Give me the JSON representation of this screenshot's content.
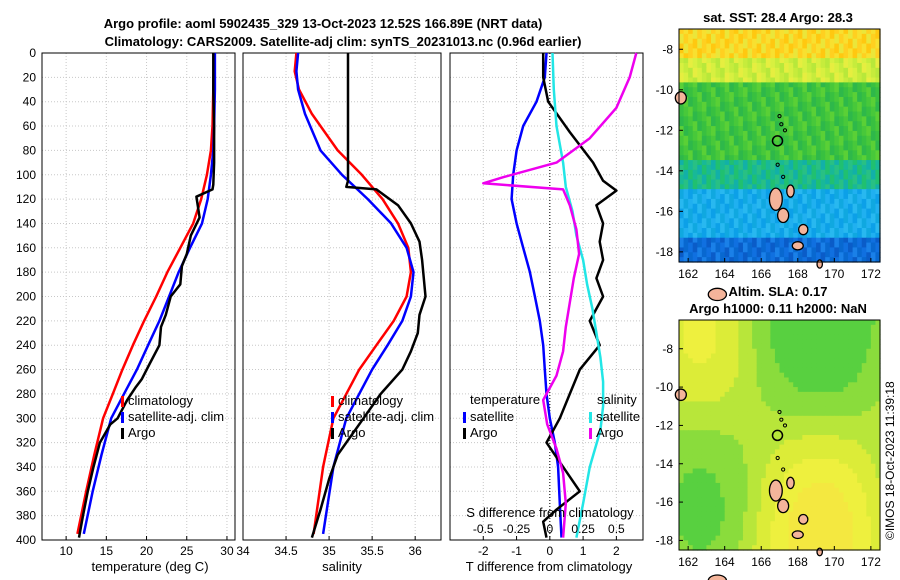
{
  "header": {
    "title_line1": "Argo profile: aoml 5902435_329 13-Oct-2023 12.52S 166.89E (NRT data)",
    "title_line2": "Climatology: CARS2009. Satellite-adj clim: synTS_20231013.nc (0.96d earlier)"
  },
  "colors": {
    "climatology": "#ff0000",
    "satellite": "#0000ff",
    "argo": "#000000",
    "sat_temp_diff": "#22e6e6",
    "salinity_diff": "#ee00ee"
  },
  "chart_data": [
    {
      "type": "line",
      "title": "",
      "xlabel": "temperature (deg C)",
      "ylabel": "",
      "xlim": [
        7,
        31
      ],
      "ylim": [
        400,
        0
      ],
      "xticks": [
        10,
        15,
        20,
        25,
        30
      ],
      "yticks": [
        0,
        20,
        40,
        60,
        80,
        100,
        120,
        140,
        160,
        180,
        200,
        220,
        240,
        260,
        280,
        300,
        320,
        340,
        360,
        380,
        400
      ],
      "legend": [
        "climatology",
        "satellite-adj. clim",
        "Argo"
      ],
      "series": [
        {
          "name": "climatology",
          "x": [
            28.4,
            28.3,
            28.2,
            28.0,
            27.5,
            26.8,
            25.8,
            24.2,
            22.6,
            21.2,
            19.7,
            18.3,
            17.0,
            15.8,
            14.6,
            13.5,
            12.5,
            11.4
          ],
          "y": [
            0,
            30,
            60,
            80,
            100,
            120,
            140,
            160,
            180,
            200,
            220,
            240,
            260,
            280,
            300,
            330,
            360,
            395
          ]
        },
        {
          "name": "satellite-adj. clim",
          "x": [
            28.5,
            28.5,
            28.4,
            28.3,
            28.0,
            27.6,
            26.9,
            25.4,
            24.0,
            22.8,
            21.6,
            20.2,
            18.8,
            17.2,
            15.6,
            14.4,
            13.3,
            12.2
          ],
          "y": [
            0,
            30,
            60,
            80,
            100,
            120,
            140,
            160,
            180,
            200,
            220,
            240,
            260,
            280,
            300,
            330,
            360,
            395
          ]
        },
        {
          "name": "Argo",
          "x": [
            28.3,
            28.3,
            28.4,
            28.4,
            28.3,
            28.2,
            26.2,
            26.6,
            25.5,
            25.0,
            24.4,
            24.2,
            23.0,
            22.4,
            21.8,
            21.6,
            20.4,
            19.4,
            18.6,
            17.6,
            16.4,
            15.5,
            14.2,
            13.4,
            12.7,
            12.1,
            11.6
          ],
          "y": [
            0,
            30,
            60,
            90,
            108,
            112,
            118,
            135,
            150,
            165,
            175,
            190,
            200,
            215,
            225,
            240,
            255,
            268,
            275,
            285,
            300,
            305,
            320,
            340,
            360,
            380,
            398
          ]
        }
      ]
    },
    {
      "type": "line",
      "title": "",
      "xlabel": "salinity",
      "ylabel": "",
      "xlim": [
        34,
        36.3
      ],
      "ylim": [
        400,
        0
      ],
      "xticks": [
        34,
        34.5,
        35,
        35.5,
        36
      ],
      "xtick_labels": [
        "34",
        "34.5",
        "35",
        "35.5",
        "36"
      ],
      "legend": [
        "climatology",
        "satellite-adj. clim",
        "Argo"
      ],
      "series": [
        {
          "name": "climatology",
          "x": [
            34.62,
            34.6,
            34.65,
            34.8,
            35.1,
            35.38,
            35.62,
            35.8,
            35.92,
            35.95,
            35.9,
            35.75,
            35.55,
            35.35,
            35.2,
            35.05,
            34.93,
            34.82
          ],
          "y": [
            0,
            15,
            30,
            50,
            80,
            100,
            120,
            140,
            160,
            180,
            200,
            220,
            240,
            260,
            280,
            300,
            340,
            395
          ]
        },
        {
          "name": "satellite-adj. clim",
          "x": [
            34.64,
            34.62,
            34.64,
            34.72,
            34.9,
            35.15,
            35.45,
            35.72,
            35.9,
            35.98,
            35.95,
            35.85,
            35.68,
            35.5,
            35.35,
            35.2,
            35.05,
            34.93
          ],
          "y": [
            0,
            15,
            30,
            50,
            80,
            100,
            120,
            140,
            160,
            180,
            200,
            220,
            240,
            260,
            280,
            300,
            340,
            395
          ]
        },
        {
          "name": "Argo",
          "x": [
            35.22,
            35.22,
            35.22,
            35.22,
            35.2,
            35.55,
            35.8,
            35.95,
            36.05,
            36.08,
            36.1,
            36.12,
            36.05,
            36.03,
            35.95,
            35.85,
            35.6,
            35.4,
            35.25,
            35.1,
            35.0,
            34.9,
            34.8
          ],
          "y": [
            0,
            40,
            80,
            105,
            110,
            112,
            125,
            140,
            155,
            170,
            185,
            200,
            215,
            230,
            245,
            260,
            280,
            300,
            315,
            330,
            350,
            375,
            398
          ]
        }
      ]
    },
    {
      "type": "line",
      "title": "",
      "xlabel": "T difference from climatology",
      "xlabel_top": "S difference from climatology",
      "ylabel": "",
      "xlim": [
        -3,
        2.8
      ],
      "ylim": [
        400,
        0
      ],
      "xticks": [
        -2,
        -1,
        0,
        1,
        2
      ],
      "xtick_labels": [
        "-2",
        "-1",
        "0",
        "1",
        "2"
      ],
      "s_ticks": [
        -0.5,
        -0.25,
        0,
        0.25,
        0.5
      ],
      "s_tick_labels": [
        "-0.5",
        "-0.25",
        "0",
        "0.25",
        "0.5"
      ],
      "legend_left_heading": "temperature",
      "legend_right_heading": "salinity",
      "legend_items": [
        "satellite",
        "Argo",
        "satellite",
        "Argo"
      ],
      "series": [
        {
          "name": "T satellite",
          "x": [
            -0.1,
            -0.15,
            -0.4,
            -0.8,
            -1.0,
            -1.1,
            -1.15,
            -1.0,
            -0.8,
            -0.6,
            -0.45,
            -0.3,
            -0.2,
            -0.15,
            -0.1,
            0.0,
            0.15,
            0.25,
            0.3,
            0.35
          ],
          "y": [
            0,
            20,
            40,
            60,
            80,
            100,
            120,
            140,
            160,
            180,
            200,
            220,
            240,
            260,
            280,
            300,
            320,
            340,
            370,
            398
          ]
        },
        {
          "name": "T Argo",
          "x": [
            -0.2,
            -0.2,
            -0.05,
            0.6,
            1.3,
            1.6,
            2.0,
            1.4,
            1.6,
            1.5,
            1.6,
            1.4,
            1.6,
            1.2,
            1.5,
            0.9,
            0.6,
            0.3,
            -0.1,
            0.4,
            0.9,
            0.2,
            -0.2,
            -0.1
          ],
          "y": [
            0,
            20,
            40,
            65,
            90,
            105,
            113,
            125,
            140,
            155,
            170,
            185,
            200,
            220,
            240,
            260,
            280,
            300,
            320,
            340,
            360,
            375,
            385,
            398
          ]
        },
        {
          "name": "S satellite",
          "x": [
            0.02,
            0.03,
            0.05,
            0.1,
            0.12,
            0.17,
            0.2,
            0.25,
            0.28,
            0.32,
            0.35,
            0.38,
            0.4,
            0.4,
            0.38,
            0.3,
            0.25,
            0.2
          ],
          "y": [
            0,
            30,
            60,
            90,
            110,
            130,
            150,
            170,
            190,
            210,
            230,
            250,
            270,
            290,
            310,
            340,
            370,
            398
          ]
        },
        {
          "name": "S Argo",
          "x": [
            0.65,
            0.6,
            0.5,
            0.3,
            0.05,
            -0.35,
            -0.5,
            0.1,
            0.15,
            0.2,
            0.22,
            0.18,
            0.15,
            0.12,
            0.1,
            0.05,
            -0.05,
            -0.02,
            0.05,
            0.1,
            0.12,
            0.1
          ],
          "y": [
            0,
            20,
            45,
            70,
            90,
            102,
            107,
            112,
            125,
            145,
            165,
            185,
            205,
            225,
            245,
            265,
            285,
            305,
            325,
            345,
            370,
            398
          ]
        }
      ]
    },
    {
      "type": "heatmap",
      "title": "sat. SST: 28.4 Argo: 28.3",
      "xlim": [
        161.5,
        172.5
      ],
      "ylim": [
        -18.5,
        -7
      ],
      "xticks": [
        162,
        164,
        166,
        168,
        170,
        172
      ],
      "yticks": [
        -8,
        -10,
        -12,
        -14,
        -16,
        -18
      ],
      "xtick_labels": [
        "162",
        "164",
        "166",
        "168",
        "170",
        "172"
      ],
      "ytick_labels": [
        "-8",
        "-10",
        "-12",
        "-14",
        "-16",
        "-18"
      ],
      "argo_position": {
        "lon": 166.89,
        "lat": -12.52
      }
    },
    {
      "type": "heatmap",
      "title": "Altim. SLA: 0.17",
      "subtitle": "Argo h1000: 0.11 h2000: NaN",
      "xlim": [
        161.5,
        172.5
      ],
      "ylim": [
        -18.5,
        -6.5
      ],
      "xticks": [
        162,
        164,
        166,
        168,
        170,
        172
      ],
      "yticks": [
        -8,
        -10,
        -12,
        -14,
        -16,
        -18
      ],
      "xtick_labels": [
        "162",
        "164",
        "166",
        "168",
        "170",
        "172"
      ],
      "ytick_labels": [
        "-8",
        "-10",
        "-12",
        "-14",
        "-16",
        "-18"
      ],
      "argo_position": {
        "lon": 166.89,
        "lat": -12.52
      }
    }
  ],
  "depth_tick_labels": [
    "0",
    "20",
    "40",
    "60",
    "80",
    "100",
    "120",
    "140",
    "160",
    "180",
    "200",
    "220",
    "240",
    "260",
    "280",
    "300",
    "320",
    "340",
    "360",
    "380",
    "400"
  ],
  "legend": {
    "temp_items": [
      "climatology",
      "satellite-adj. clim",
      "Argo"
    ],
    "sal_items": [
      "climatology",
      "satellite-adj. clim",
      "Argo"
    ]
  },
  "stamp": "©IMOS 18-Oct-2023 11:39:18"
}
